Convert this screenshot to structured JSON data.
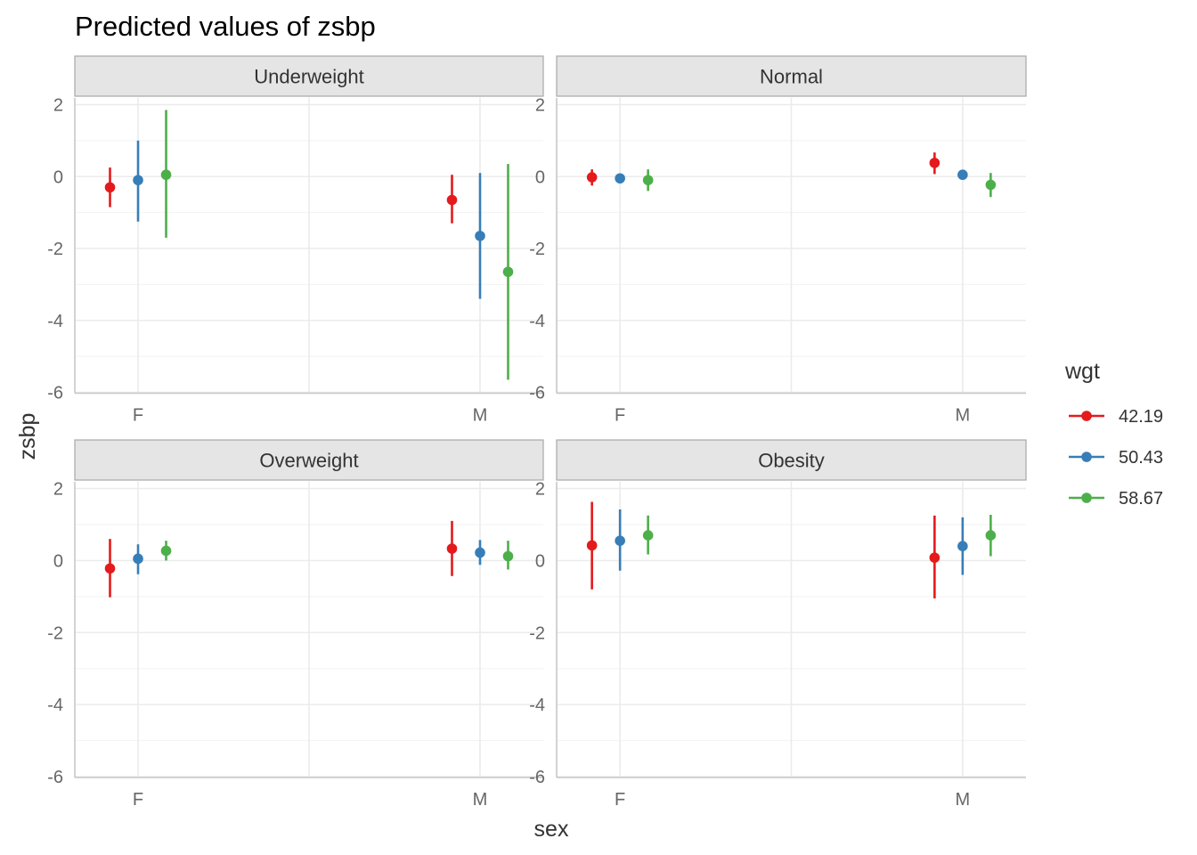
{
  "chart_data": {
    "type": "scatter",
    "subtype": "pointrange-facets",
    "title": "Predicted values of zsbp",
    "xlabel": "sex",
    "ylabel": "zsbp",
    "categories": [
      "F",
      "M"
    ],
    "ylim": [
      -6,
      2
    ],
    "y_ticks": [
      2,
      0,
      -2,
      -4,
      -6
    ],
    "grid": true,
    "legend": {
      "title": "wgt",
      "position": "right",
      "entries": [
        {
          "label": "42.19",
          "color": "#e41a1c"
        },
        {
          "label": "50.43",
          "color": "#377eb8"
        },
        {
          "label": "58.67",
          "color": "#4daf4a"
        }
      ]
    },
    "facets": [
      {
        "label": "Underweight",
        "series": [
          {
            "name": "42.19",
            "values": [
              -0.3,
              -0.65
            ],
            "lower": [
              -0.85,
              -1.3
            ],
            "upper": [
              0.25,
              0.05
            ]
          },
          {
            "name": "50.43",
            "values": [
              -0.1,
              -1.65
            ],
            "lower": [
              -1.25,
              -3.4
            ],
            "upper": [
              1.0,
              0.1
            ]
          },
          {
            "name": "58.67",
            "values": [
              0.05,
              -2.65
            ],
            "lower": [
              -1.7,
              -5.65
            ],
            "upper": [
              1.85,
              0.35
            ]
          }
        ]
      },
      {
        "label": "Normal",
        "series": [
          {
            "name": "42.19",
            "values": [
              -0.02,
              0.38
            ],
            "lower": [
              -0.25,
              0.07
            ],
            "upper": [
              0.2,
              0.67
            ]
          },
          {
            "name": "50.43",
            "values": [
              -0.05,
              0.05
            ],
            "lower": [
              -0.13,
              -0.05
            ],
            "upper": [
              0.03,
              0.15
            ]
          },
          {
            "name": "58.67",
            "values": [
              -0.1,
              -0.23
            ],
            "lower": [
              -0.4,
              -0.57
            ],
            "upper": [
              0.2,
              0.1
            ]
          }
        ]
      },
      {
        "label": "Overweight",
        "series": [
          {
            "name": "42.19",
            "values": [
              -0.22,
              0.33
            ],
            "lower": [
              -1.02,
              -0.43
            ],
            "upper": [
              0.6,
              1.1
            ]
          },
          {
            "name": "50.43",
            "values": [
              0.05,
              0.22
            ],
            "lower": [
              -0.38,
              -0.12
            ],
            "upper": [
              0.45,
              0.57
            ]
          },
          {
            "name": "58.67",
            "values": [
              0.27,
              0.12
            ],
            "lower": [
              0.0,
              -0.25
            ],
            "upper": [
              0.55,
              0.55
            ]
          }
        ]
      },
      {
        "label": "Obesity",
        "series": [
          {
            "name": "42.19",
            "values": [
              0.42,
              0.08
            ],
            "lower": [
              -0.8,
              -1.05
            ],
            "upper": [
              1.63,
              1.25
            ]
          },
          {
            "name": "50.43",
            "values": [
              0.55,
              0.4
            ],
            "lower": [
              -0.28,
              -0.4
            ],
            "upper": [
              1.42,
              1.2
            ]
          },
          {
            "name": "58.67",
            "values": [
              0.7,
              0.7
            ],
            "lower": [
              0.17,
              0.12
            ],
            "upper": [
              1.25,
              1.27
            ]
          }
        ]
      }
    ]
  }
}
